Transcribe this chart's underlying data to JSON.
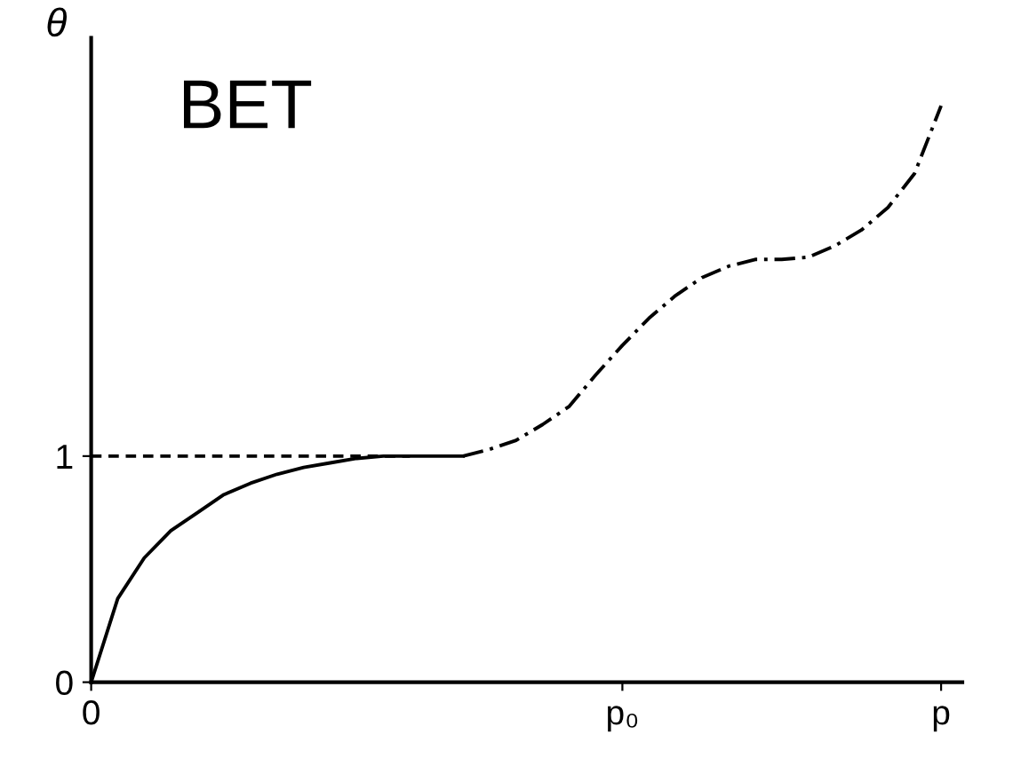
{
  "chart_data": {
    "type": "line",
    "ylabel": "θ",
    "annotations": [
      "BET"
    ],
    "categories": [
      "0",
      null,
      null,
      null,
      null,
      null,
      null,
      null,
      null,
      null,
      null,
      null,
      null,
      null,
      null,
      null,
      null,
      null,
      null,
      null,
      "p₀",
      null,
      null,
      null,
      null,
      null,
      null,
      null,
      null,
      null,
      null,
      null,
      "p"
    ],
    "ylim": [
      0,
      2.85
    ],
    "yticks": [
      0,
      1
    ],
    "grid": false,
    "legend": false,
    "marker": "none",
    "series": [
      {
        "color": "#000000",
        "line_style": "solid",
        "values": [
          0,
          0.37,
          0.55,
          0.67,
          0.75,
          0.83,
          0.88,
          0.92,
          0.95,
          0.97,
          0.99,
          1.0,
          1.0,
          1.0,
          1.0,
          null,
          null,
          null,
          null,
          null,
          null,
          null,
          null,
          null,
          null,
          null,
          null,
          null,
          null,
          null,
          null,
          null,
          null
        ]
      },
      {
        "color": "#000000",
        "line_style": "dashed",
        "values": [
          null,
          null,
          null,
          null,
          null,
          null,
          null,
          null,
          null,
          null,
          null,
          null,
          null,
          null,
          1.0,
          1.03,
          1.07,
          1.14,
          1.22,
          1.36,
          1.49,
          1.61,
          1.71,
          1.79,
          1.84,
          1.87,
          1.87,
          1.88,
          1.93,
          2.0,
          2.1,
          2.25,
          2.55
        ]
      },
      {
        "color": "#000000",
        "line_style": "dotted",
        "values": [
          1,
          1,
          1,
          1,
          1,
          1,
          1,
          1,
          1,
          1,
          1,
          1,
          1,
          null,
          null,
          null,
          null,
          null,
          null,
          null,
          null,
          null,
          null,
          null,
          null,
          null,
          null,
          null,
          null,
          null,
          null,
          null,
          null
        ]
      }
    ]
  }
}
